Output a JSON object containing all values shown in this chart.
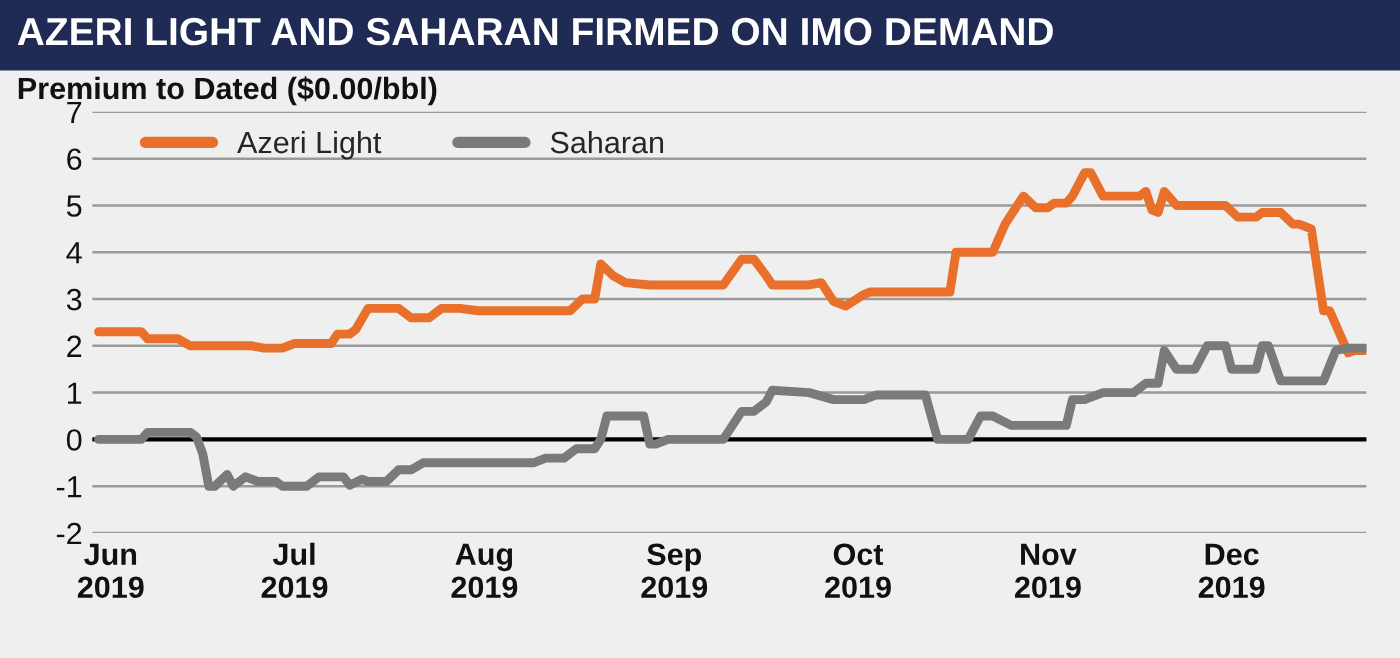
{
  "chart_data": {
    "type": "line",
    "title": "AZERI LIGHT AND SAHARAN FIRMED ON IMO DEMAND",
    "ylabel": "Premium to Dated ($0.00/bbl)",
    "series": [
      {
        "name": "Azeri Light",
        "color": "#e8702a",
        "x": [
          "2019-05-30",
          "2019-06-06",
          "2019-06-07",
          "2019-06-12",
          "2019-06-14",
          "2019-06-24",
          "2019-06-26",
          "2019-06-29",
          "2019-07-01",
          "2019-07-07",
          "2019-07-08",
          "2019-07-10",
          "2019-07-11",
          "2019-07-13",
          "2019-07-18",
          "2019-07-20",
          "2019-07-23",
          "2019-07-25",
          "2019-07-28",
          "2019-07-31",
          "2019-08-15",
          "2019-08-17",
          "2019-08-19",
          "2019-08-20",
          "2019-08-22",
          "2019-08-24",
          "2019-08-28",
          "2019-08-31",
          "2019-09-09",
          "2019-09-12",
          "2019-09-14",
          "2019-09-16",
          "2019-09-17",
          "2019-09-23",
          "2019-09-25",
          "2019-09-27",
          "2019-09-29",
          "2019-10-02",
          "2019-10-03",
          "2019-10-16",
          "2019-10-17",
          "2019-10-23",
          "2019-10-25",
          "2019-10-27",
          "2019-10-28",
          "2019-10-30",
          "2019-11-01",
          "2019-11-02",
          "2019-11-04",
          "2019-11-05",
          "2019-11-07",
          "2019-11-08",
          "2019-11-10",
          "2019-11-16",
          "2019-11-17",
          "2019-11-18",
          "2019-11-19",
          "2019-11-20",
          "2019-11-22",
          "2019-11-30",
          "2019-12-02",
          "2019-12-05",
          "2019-12-06",
          "2019-12-09",
          "2019-12-11",
          "2019-12-12",
          "2019-12-14",
          "2019-12-16",
          "2019-12-17",
          "2019-12-18",
          "2019-12-20",
          "2019-12-21",
          "2019-12-23"
        ],
        "values": [
          2.3,
          2.3,
          2.15,
          2.15,
          2.0,
          2.0,
          1.95,
          1.95,
          2.05,
          2.05,
          2.25,
          2.25,
          2.35,
          2.8,
          2.8,
          2.6,
          2.6,
          2.8,
          2.8,
          2.75,
          2.75,
          3.0,
          3.0,
          3.75,
          3.5,
          3.35,
          3.3,
          3.3,
          3.3,
          3.85,
          3.85,
          3.5,
          3.3,
          3.3,
          3.35,
          2.95,
          2.85,
          3.1,
          3.15,
          3.15,
          4.0,
          4.0,
          4.6,
          5.0,
          5.2,
          4.95,
          4.95,
          5.05,
          5.05,
          5.2,
          5.7,
          5.7,
          5.2,
          5.2,
          5.3,
          4.9,
          4.85,
          5.3,
          5.0,
          5.0,
          4.75,
          4.75,
          4.85,
          4.85,
          4.6,
          4.6,
          4.5,
          2.75,
          2.75,
          2.45,
          1.85,
          1.9,
          1.9
        ]
      },
      {
        "name": "Saharan",
        "color": "#7a7a7a",
        "x": [
          "2019-05-30",
          "2019-06-06",
          "2019-06-07",
          "2019-06-14",
          "2019-06-15",
          "2019-06-16",
          "2019-06-17",
          "2019-06-18",
          "2019-06-20",
          "2019-06-21",
          "2019-06-23",
          "2019-06-25",
          "2019-06-28",
          "2019-06-29",
          "2019-07-03",
          "2019-07-05",
          "2019-07-09",
          "2019-07-10",
          "2019-07-12",
          "2019-07-13",
          "2019-07-16",
          "2019-07-18",
          "2019-07-20",
          "2019-07-22",
          "2019-08-09",
          "2019-08-11",
          "2019-08-14",
          "2019-08-16",
          "2019-08-19",
          "2019-08-20",
          "2019-08-21",
          "2019-08-27",
          "2019-08-28",
          "2019-08-29",
          "2019-08-31",
          "2019-09-09",
          "2019-09-12",
          "2019-09-14",
          "2019-09-16",
          "2019-09-17",
          "2019-09-23",
          "2019-09-27",
          "2019-10-02",
          "2019-10-04",
          "2019-10-12",
          "2019-10-14",
          "2019-10-19",
          "2019-10-21",
          "2019-10-23",
          "2019-10-26",
          "2019-11-04",
          "2019-11-05",
          "2019-11-07",
          "2019-11-10",
          "2019-11-15",
          "2019-11-17",
          "2019-11-19",
          "2019-11-20",
          "2019-11-22",
          "2019-11-25",
          "2019-11-27",
          "2019-11-30",
          "2019-12-01",
          "2019-12-05",
          "2019-12-06",
          "2019-12-07",
          "2019-12-09",
          "2019-12-16",
          "2019-12-18",
          "2019-12-20",
          "2019-12-23"
        ],
        "values": [
          0.0,
          0.0,
          0.15,
          0.15,
          0.05,
          -0.3,
          -1.0,
          -1.0,
          -0.75,
          -1.0,
          -0.8,
          -0.9,
          -0.9,
          -1.0,
          -1.0,
          -0.8,
          -0.8,
          -0.98,
          -0.85,
          -0.9,
          -0.9,
          -0.65,
          -0.65,
          -0.5,
          -0.5,
          -0.4,
          -0.4,
          -0.2,
          -0.2,
          0.0,
          0.5,
          0.5,
          -0.1,
          -0.1,
          0.0,
          0.0,
          0.6,
          0.6,
          0.8,
          1.05,
          1.0,
          0.85,
          0.85,
          0.95,
          0.95,
          0.0,
          0.0,
          0.5,
          0.5,
          0.3,
          0.3,
          0.85,
          0.85,
          1.0,
          1.0,
          1.2,
          1.2,
          1.9,
          1.5,
          1.5,
          2.0,
          2.0,
          1.5,
          1.5,
          2.0,
          2.0,
          1.25,
          1.25,
          1.9,
          1.95,
          1.95
        ]
      }
    ],
    "xlim": [
      "2019-05-29",
      "2019-12-23"
    ],
    "xticks": [
      {
        "value": "2019-06-01",
        "label": "Jun\n2019"
      },
      {
        "value": "2019-07-01",
        "label": "Jul\n2019"
      },
      {
        "value": "2019-08-01",
        "label": "Aug\n2019"
      },
      {
        "value": "2019-09-01",
        "label": "Sep\n2019"
      },
      {
        "value": "2019-10-01",
        "label": "Oct\n2019"
      },
      {
        "value": "2019-11-01",
        "label": "Nov\n2019"
      },
      {
        "value": "2019-12-01",
        "label": "Dec\n2019"
      }
    ],
    "ylim": [
      -2,
      7
    ],
    "yticks": [
      -2,
      -1,
      0,
      1,
      2,
      3,
      4,
      5,
      6,
      7
    ],
    "ref_lines": [
      {
        "axis": "y",
        "value": 0,
        "color": "#000000"
      }
    ],
    "grid": "y",
    "legend": "top left",
    "marker": "none",
    "line_style": "solid"
  }
}
